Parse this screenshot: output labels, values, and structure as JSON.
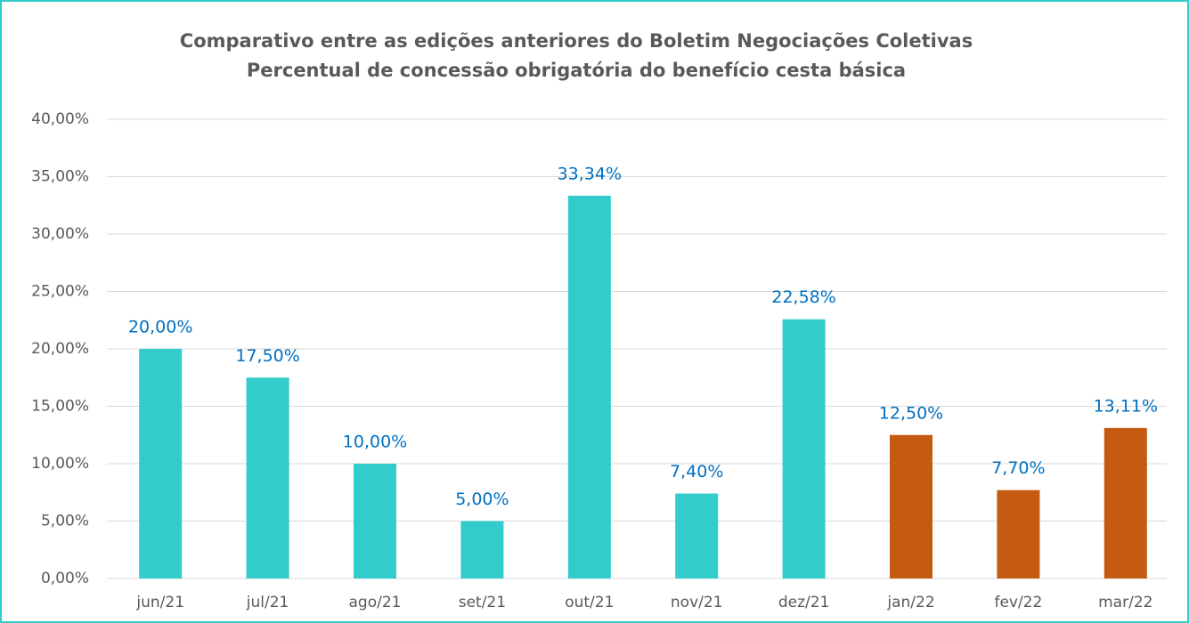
{
  "chart_data": {
    "type": "bar",
    "title": "Comparativo entre as edições anteriores do Boletim Negociações Coletivas",
    "subtitle": "Percentual de concessão obrigatória do benefício cesta básica",
    "categories": [
      "jun/21",
      "jul/21",
      "ago/21",
      "set/21",
      "out/21",
      "nov/21",
      "dez/21",
      "jan/22",
      "fev/22",
      "mar/22"
    ],
    "values": [
      20.0,
      17.5,
      10.0,
      5.0,
      33.34,
      7.4,
      22.58,
      12.5,
      7.7,
      13.11
    ],
    "value_labels": [
      "20,00%",
      "17,50%",
      "10,00%",
      "5,00%",
      "33,34%",
      "7,40%",
      "22,58%",
      "12,50%",
      "7,70%",
      "13,11%"
    ],
    "colors": [
      "#33CCCC",
      "#33CCCC",
      "#33CCCC",
      "#33CCCC",
      "#33CCCC",
      "#33CCCC",
      "#33CCCC",
      "#C55A11",
      "#C55A11",
      "#C55A11"
    ],
    "ylim": [
      0,
      40
    ],
    "yticks": [
      {
        "value": 0,
        "label": "0,00%"
      },
      {
        "value": 5,
        "label": "5,00%"
      },
      {
        "value": 10,
        "label": "10,00%"
      },
      {
        "value": 15,
        "label": "15,00%"
      },
      {
        "value": 20,
        "label": "20,00%"
      },
      {
        "value": 25,
        "label": "25,00%"
      },
      {
        "value": 30,
        "label": "30,00%"
      },
      {
        "value": 35,
        "label": "35,00%"
      },
      {
        "value": 40,
        "label": "40,00%"
      }
    ],
    "grid": true
  }
}
